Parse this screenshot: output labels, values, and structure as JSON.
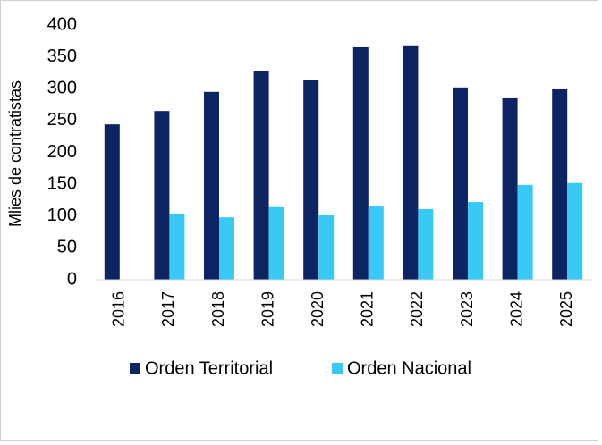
{
  "chart_data": {
    "type": "bar",
    "y_label": "Mlies de contratistas",
    "categories": [
      "2016",
      "2017",
      "2018",
      "2019",
      "2020",
      "2021",
      "2022",
      "2023",
      "2024",
      "2025"
    ],
    "series": [
      {
        "name": "Orden Territorial",
        "color": "#0c2461",
        "values": [
          244,
          265,
          295,
          328,
          313,
          365,
          368,
          302,
          285,
          299
        ]
      },
      {
        "name": "Orden Nacional",
        "color": "#38c9f5",
        "values": [
          null,
          104,
          98,
          114,
          101,
          115,
          111,
          122,
          149,
          152
        ]
      }
    ],
    "ylim": [
      0,
      400
    ],
    "yticks": [
      0,
      50,
      100,
      150,
      200,
      250,
      300,
      350,
      400
    ],
    "legend": "bottom"
  }
}
